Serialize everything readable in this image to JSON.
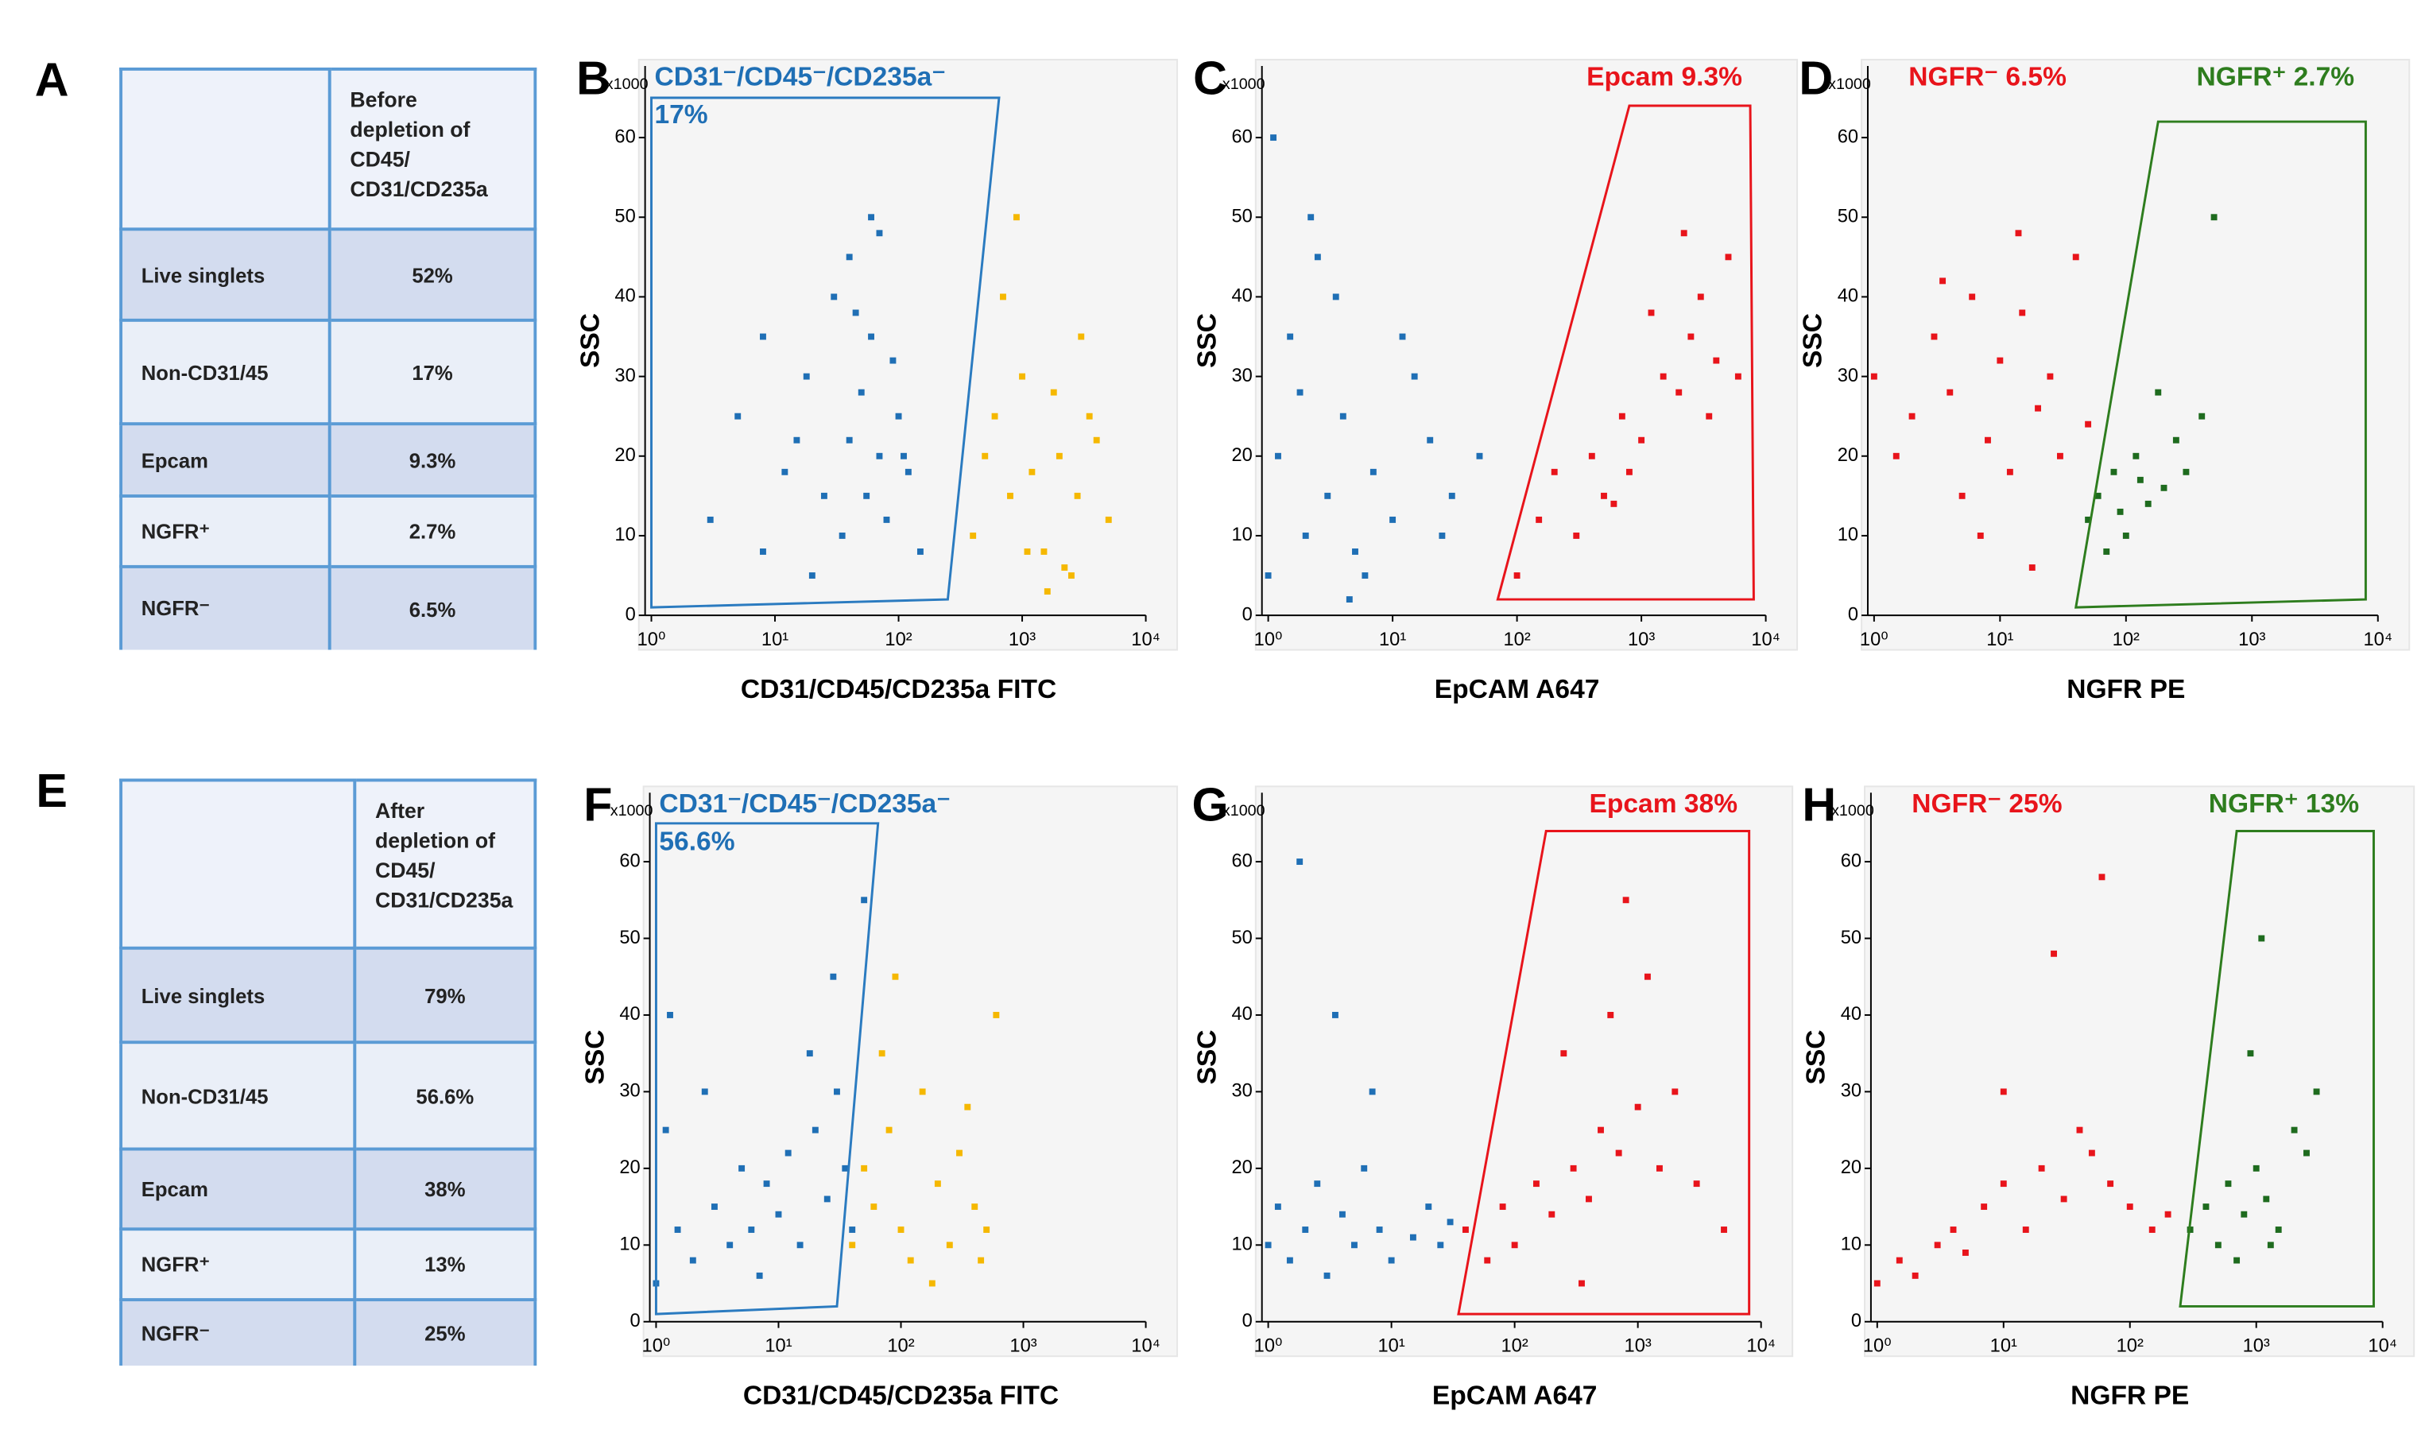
{
  "tables": [
    {
      "panel": "A",
      "title": "Before depletion of CD45/ CD31/CD235a",
      "rows": [
        [
          "Live singlets",
          "52%"
        ],
        [
          "Non-CD31/45",
          "17%"
        ],
        [
          "Epcam",
          "9.3%"
        ],
        [
          "NGFR⁺",
          "2.7%"
        ],
        [
          "NGFR⁻",
          "6.5%"
        ]
      ]
    },
    {
      "panel": "E",
      "title": "After depletion of CD45/ CD31/CD235a",
      "rows": [
        [
          "Live singlets",
          "79%"
        ],
        [
          "Non-CD31/45",
          "56.6%"
        ],
        [
          "Epcam",
          "38%"
        ],
        [
          "NGFR⁺",
          "13%"
        ],
        [
          "NGFR⁻",
          "25%"
        ]
      ]
    }
  ],
  "chart_data": [
    {
      "type": "scatter",
      "panel": "B",
      "xlabel": "CD31/CD45/CD235a FITC",
      "ylabel": "SSC",
      "y_multiplier": "x1000",
      "xscale": "log",
      "xlim": [
        1,
        10000
      ],
      "ylim": [
        0,
        69
      ],
      "xticks": [
        {
          "value": 1,
          "label": "10⁰"
        },
        {
          "value": 10,
          "label": "10¹"
        },
        {
          "value": 100,
          "label": "10²"
        },
        {
          "value": 1000,
          "label": "10³"
        },
        {
          "value": 10000,
          "label": "10⁴"
        }
      ],
      "yticks": [
        0,
        10,
        20,
        30,
        40,
        50,
        60
      ],
      "annotations": [
        {
          "text": "CD31⁻/CD45⁻/CD235a⁻",
          "color": "#1f6fb5",
          "position": "top-left"
        },
        {
          "text": "17%",
          "color": "#1f6fb5",
          "position": "top-left"
        }
      ],
      "gates": [
        {
          "color": "#2b7bc0",
          "x": [
            1,
            250,
            650,
            1
          ],
          "y": [
            1,
            2,
            65,
            65
          ]
        }
      ],
      "series": [
        {
          "color": "#1f6fb5",
          "x": [
            3,
            5,
            8,
            12,
            18,
            25,
            30,
            40,
            50,
            60,
            70,
            80,
            100,
            120,
            150,
            40,
            60,
            35,
            90,
            20,
            55,
            45,
            70,
            110,
            15,
            8
          ],
          "values": [
            12,
            25,
            8,
            18,
            30,
            15,
            40,
            22,
            28,
            35,
            20,
            12,
            25,
            18,
            8,
            45,
            50,
            10,
            32,
            5,
            15,
            38,
            48,
            20,
            22,
            35
          ]
        },
        {
          "color": "#f5b800",
          "x": [
            400,
            600,
            800,
            1000,
            1500,
            2000,
            2500,
            3000,
            4000,
            5000,
            700,
            1200,
            1800,
            2200,
            3500,
            900,
            1600,
            2800,
            500,
            1100
          ],
          "values": [
            10,
            25,
            15,
            30,
            8,
            20,
            5,
            35,
            22,
            12,
            40,
            18,
            28,
            6,
            25,
            50,
            3,
            15,
            20,
            8
          ]
        }
      ]
    },
    {
      "type": "scatter",
      "panel": "C",
      "xlabel": "EpCAM A647",
      "ylabel": "SSC",
      "y_multiplier": "x1000",
      "xscale": "log",
      "xlim": [
        1,
        10000
      ],
      "ylim": [
        0,
        69
      ],
      "xticks": [
        {
          "value": 1,
          "label": "10⁰"
        },
        {
          "value": 10,
          "label": "10¹"
        },
        {
          "value": 100,
          "label": "10²"
        },
        {
          "value": 1000,
          "label": "10³"
        },
        {
          "value": 10000,
          "label": "10⁴"
        }
      ],
      "yticks": [
        0,
        10,
        20,
        30,
        40,
        50,
        60
      ],
      "annotations": [
        {
          "text": "Epcam 9.3%",
          "color": "#e8141b",
          "position": "top-right"
        }
      ],
      "gates": [
        {
          "color": "#e8141b",
          "x": [
            70,
            8000,
            7500,
            800
          ],
          "y": [
            2,
            2,
            64,
            64
          ]
        }
      ],
      "series": [
        {
          "color": "#1f6fb5",
          "x": [
            1,
            1.2,
            1.5,
            2,
            2.5,
            3,
            4,
            5,
            7,
            10,
            15,
            20,
            30,
            50,
            1.1,
            1.8,
            3.5,
            6,
            12,
            25,
            2.2,
            4.5
          ],
          "values": [
            5,
            20,
            35,
            10,
            45,
            15,
            25,
            8,
            18,
            12,
            30,
            22,
            15,
            20,
            60,
            28,
            40,
            5,
            35,
            10,
            50,
            2
          ]
        },
        {
          "color": "#e8141b",
          "x": [
            100,
            150,
            200,
            300,
            400,
            500,
            700,
            1000,
            1500,
            2000,
            2500,
            3000,
            3500,
            4000,
            5000,
            6000,
            800,
            1200,
            2200,
            600
          ],
          "values": [
            5,
            12,
            18,
            10,
            20,
            15,
            25,
            22,
            30,
            28,
            35,
            40,
            25,
            32,
            45,
            30,
            18,
            38,
            48,
            14
          ]
        }
      ]
    },
    {
      "type": "scatter",
      "panel": "D",
      "xlabel": "NGFR PE",
      "ylabel": "SSC",
      "y_multiplier": "x1000",
      "xscale": "log",
      "xlim": [
        1,
        10000
      ],
      "ylim": [
        0,
        69
      ],
      "xticks": [
        {
          "value": 1,
          "label": "10⁰"
        },
        {
          "value": 10,
          "label": "10¹"
        },
        {
          "value": 100,
          "label": "10²"
        },
        {
          "value": 1000,
          "label": "10³"
        },
        {
          "value": 10000,
          "label": "10⁴"
        }
      ],
      "yticks": [
        0,
        10,
        20,
        30,
        40,
        50,
        60
      ],
      "annotations": [
        {
          "text": "NGFR⁻ 6.5%",
          "color": "#e8141b",
          "position": "top-left"
        },
        {
          "text": "NGFR⁺ 2.7%",
          "color": "#2e7d1e",
          "position": "top-right"
        }
      ],
      "gates": [
        {
          "color": "#2e7d1e",
          "x": [
            40,
            8000,
            8000,
            180
          ],
          "y": [
            1,
            2,
            62,
            62
          ]
        }
      ],
      "series": [
        {
          "color": "#e8141b",
          "x": [
            1,
            1.5,
            2,
            3,
            4,
            5,
            6,
            8,
            10,
            12,
            15,
            20,
            25,
            30,
            40,
            50,
            7,
            14,
            18,
            3.5
          ],
          "values": [
            30,
            20,
            25,
            35,
            28,
            15,
            40,
            22,
            32,
            18,
            38,
            26,
            30,
            20,
            45,
            24,
            10,
            48,
            6,
            42
          ]
        },
        {
          "color": "#1e6b1e",
          "x": [
            50,
            60,
            80,
            100,
            120,
            150,
            200,
            250,
            300,
            400,
            500,
            70,
            180,
            90,
            130
          ],
          "values": [
            12,
            15,
            18,
            10,
            20,
            14,
            16,
            22,
            18,
            25,
            50,
            8,
            28,
            13,
            17
          ]
        }
      ]
    },
    {
      "type": "scatter",
      "panel": "F",
      "xlabel": "CD31/CD45/CD235a FITC",
      "ylabel": "SSC",
      "y_multiplier": "x1000",
      "xscale": "log",
      "xlim": [
        1,
        10000
      ],
      "ylim": [
        0,
        69
      ],
      "xticks": [
        {
          "value": 1,
          "label": "10⁰"
        },
        {
          "value": 10,
          "label": "10¹"
        },
        {
          "value": 100,
          "label": "10²"
        },
        {
          "value": 1000,
          "label": "10³"
        },
        {
          "value": 10000,
          "label": "10⁴"
        }
      ],
      "yticks": [
        0,
        10,
        20,
        30,
        40,
        50,
        60
      ],
      "annotations": [
        {
          "text": "CD31⁻/CD45⁻/CD235a⁻",
          "color": "#1f6fb5",
          "position": "top-left"
        },
        {
          "text": "56.6%",
          "color": "#1f6fb5",
          "position": "top-left"
        }
      ],
      "gates": [
        {
          "color": "#2b7bc0",
          "x": [
            1,
            30,
            65,
            1
          ],
          "y": [
            1,
            2,
            65,
            65
          ]
        }
      ],
      "series": [
        {
          "color": "#1f6fb5",
          "x": [
            1,
            1.2,
            1.5,
            2,
            3,
            4,
            5,
            6,
            8,
            10,
            12,
            15,
            20,
            25,
            30,
            35,
            40,
            50,
            1.3,
            2.5,
            7,
            18,
            28
          ],
          "values": [
            5,
            25,
            12,
            8,
            15,
            10,
            20,
            12,
            18,
            14,
            22,
            10,
            25,
            16,
            30,
            20,
            12,
            55,
            40,
            30,
            6,
            35,
            45
          ]
        },
        {
          "color": "#f5b800",
          "x": [
            40,
            50,
            60,
            80,
            100,
            120,
            150,
            200,
            250,
            300,
            400,
            500,
            600,
            70,
            180,
            350,
            90,
            450
          ],
          "values": [
            10,
            20,
            15,
            25,
            12,
            8,
            30,
            18,
            10,
            22,
            15,
            12,
            40,
            35,
            5,
            28,
            45,
            8
          ]
        }
      ]
    },
    {
      "type": "scatter",
      "panel": "G",
      "xlabel": "EpCAM A647",
      "ylabel": "SSC",
      "y_multiplier": "x1000",
      "xscale": "log",
      "xlim": [
        1,
        10000
      ],
      "ylim": [
        0,
        69
      ],
      "xticks": [
        {
          "value": 1,
          "label": "10⁰"
        },
        {
          "value": 10,
          "label": "10¹"
        },
        {
          "value": 100,
          "label": "10²"
        },
        {
          "value": 1000,
          "label": "10³"
        },
        {
          "value": 10000,
          "label": "10⁴"
        }
      ],
      "yticks": [
        0,
        10,
        20,
        30,
        40,
        50,
        60
      ],
      "annotations": [
        {
          "text": "Epcam 38%",
          "color": "#e8141b",
          "position": "top-right"
        }
      ],
      "gates": [
        {
          "color": "#e8141b",
          "x": [
            35,
            8000,
            8000,
            180
          ],
          "y": [
            1,
            1,
            64,
            64
          ]
        }
      ],
      "series": [
        {
          "color": "#1f6fb5",
          "x": [
            1,
            1.2,
            1.5,
            2,
            2.5,
            3,
            4,
            5,
            6,
            8,
            10,
            15,
            20,
            25,
            30,
            1.8,
            3.5,
            7
          ],
          "values": [
            10,
            15,
            8,
            12,
            18,
            6,
            14,
            10,
            20,
            12,
            8,
            11,
            15,
            10,
            13,
            60,
            40,
            30
          ]
        },
        {
          "color": "#e8141b",
          "x": [
            40,
            60,
            80,
            100,
            150,
            200,
            300,
            400,
            500,
            700,
            1000,
            1500,
            2000,
            3000,
            5000,
            250,
            600,
            1200,
            800,
            350
          ],
          "values": [
            12,
            8,
            15,
            10,
            18,
            14,
            20,
            16,
            25,
            22,
            28,
            20,
            30,
            18,
            12,
            35,
            40,
            45,
            55,
            5
          ]
        }
      ]
    },
    {
      "type": "scatter",
      "panel": "H",
      "xlabel": "NGFR PE",
      "ylabel": "SSC",
      "y_multiplier": "x1000",
      "xscale": "log",
      "xlim": [
        1,
        10000
      ],
      "ylim": [
        0,
        69
      ],
      "xticks": [
        {
          "value": 1,
          "label": "10⁰"
        },
        {
          "value": 10,
          "label": "10¹"
        },
        {
          "value": 100,
          "label": "10²"
        },
        {
          "value": 1000,
          "label": "10³"
        },
        {
          "value": 10000,
          "label": "10⁴"
        }
      ],
      "yticks": [
        0,
        10,
        20,
        30,
        40,
        50,
        60
      ],
      "annotations": [
        {
          "text": "NGFR⁻ 25%",
          "color": "#e8141b",
          "position": "top-left"
        },
        {
          "text": "NGFR⁺ 13%",
          "color": "#2e7d1e",
          "position": "top-right"
        }
      ],
      "gates": [
        {
          "color": "#2e7d1e",
          "x": [
            250,
            8500,
            8500,
            700
          ],
          "y": [
            2,
            2,
            64,
            64
          ]
        }
      ],
      "series": [
        {
          "color": "#e8141b",
          "x": [
            1,
            1.5,
            2,
            3,
            4,
            5,
            7,
            10,
            15,
            20,
            30,
            40,
            50,
            70,
            100,
            150,
            200,
            10,
            25,
            60
          ],
          "values": [
            5,
            8,
            6,
            10,
            12,
            9,
            15,
            18,
            12,
            20,
            16,
            25,
            22,
            18,
            15,
            12,
            14,
            30,
            48,
            58
          ]
        },
        {
          "color": "#1e6b1e",
          "x": [
            300,
            400,
            500,
            600,
            700,
            800,
            1000,
            1200,
            1500,
            2000,
            2500,
            3000,
            900,
            1100,
            1300
          ],
          "values": [
            12,
            15,
            10,
            18,
            8,
            14,
            20,
            16,
            12,
            25,
            22,
            30,
            35,
            50,
            10
          ]
        }
      ]
    }
  ]
}
